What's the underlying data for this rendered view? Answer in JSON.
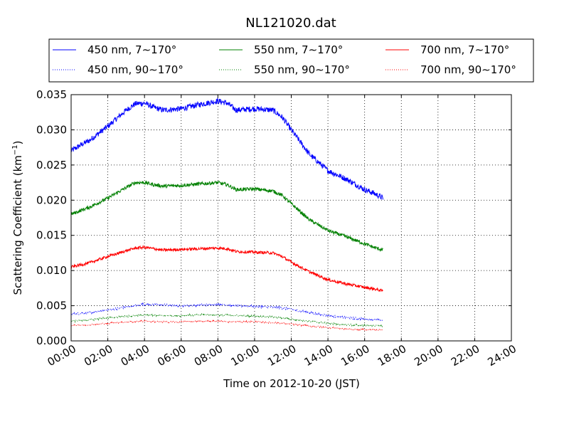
{
  "chart_data": {
    "type": "line",
    "title": "NL121020.dat",
    "xlabel": "Time on 2012-10-20 (JST)",
    "ylabel": "Scattering Coefficient (km",
    "ylabel_sup": "−1",
    "ylabel_close": ")",
    "xlim": [
      0,
      24
    ],
    "ylim": [
      0,
      0.035
    ],
    "grid": true,
    "legend_position": "top",
    "x_ticks": [
      {
        "v": 0,
        "label": "00:00"
      },
      {
        "v": 2,
        "label": "02:00"
      },
      {
        "v": 4,
        "label": "04:00"
      },
      {
        "v": 6,
        "label": "06:00"
      },
      {
        "v": 8,
        "label": "08:00"
      },
      {
        "v": 10,
        "label": "10:00"
      },
      {
        "v": 12,
        "label": "12:00"
      },
      {
        "v": 14,
        "label": "14:00"
      },
      {
        "v": 16,
        "label": "16:00"
      },
      {
        "v": 18,
        "label": "18:00"
      },
      {
        "v": 20,
        "label": "20:00"
      },
      {
        "v": 22,
        "label": "22:00"
      },
      {
        "v": 24,
        "label": "24:00"
      }
    ],
    "y_ticks": [
      {
        "v": 0,
        "label": "0.000"
      },
      {
        "v": 0.005,
        "label": "0.005"
      },
      {
        "v": 0.01,
        "label": "0.010"
      },
      {
        "v": 0.015,
        "label": "0.015"
      },
      {
        "v": 0.02,
        "label": "0.020"
      },
      {
        "v": 0.025,
        "label": "0.025"
      },
      {
        "v": 0.03,
        "label": "0.030"
      },
      {
        "v": 0.035,
        "label": "0.035"
      }
    ],
    "series": [
      {
        "name": "450 nm, 7∼170°",
        "color": "#0000ff",
        "style": "solid",
        "noise": 0.0004,
        "x": [
          0,
          0.5,
          1,
          2,
          3,
          3.5,
          4,
          4.5,
          5,
          6,
          7,
          8,
          8.5,
          9,
          10,
          11,
          11.5,
          12,
          13,
          14,
          15,
          16,
          16.5,
          17
        ],
        "values": [
          0.027,
          0.0278,
          0.0285,
          0.0305,
          0.0328,
          0.0337,
          0.0338,
          0.0332,
          0.0328,
          0.033,
          0.0336,
          0.0341,
          0.0338,
          0.0328,
          0.033,
          0.0328,
          0.0318,
          0.03,
          0.0265,
          0.0242,
          0.023,
          0.0215,
          0.021,
          0.0203
        ]
      },
      {
        "name": "450 nm, 90∼170°",
        "color": "#0000ff",
        "style": "dotted",
        "noise": 0.00015,
        "x": [
          0,
          1,
          2,
          3,
          4,
          5,
          6,
          7,
          8,
          9,
          10,
          11,
          12,
          13,
          14,
          15,
          16,
          17
        ],
        "values": [
          0.0038,
          0.004,
          0.0044,
          0.0048,
          0.0052,
          0.0051,
          0.005,
          0.0051,
          0.0052,
          0.005,
          0.0049,
          0.0048,
          0.0045,
          0.004,
          0.0036,
          0.0033,
          0.0031,
          0.0029
        ]
      },
      {
        "name": "550 nm, 7∼170°",
        "color": "#008000",
        "style": "solid",
        "noise": 0.00025,
        "x": [
          0,
          0.5,
          1,
          2,
          3,
          3.5,
          4,
          4.5,
          5,
          6,
          7,
          8,
          8.5,
          9,
          10,
          11,
          11.5,
          12,
          13,
          14,
          15,
          16,
          16.5,
          17
        ],
        "values": [
          0.018,
          0.0185,
          0.019,
          0.0203,
          0.0218,
          0.0225,
          0.0225,
          0.0222,
          0.022,
          0.0221,
          0.0223,
          0.0225,
          0.0222,
          0.0215,
          0.0216,
          0.0213,
          0.0207,
          0.0195,
          0.0172,
          0.0157,
          0.0148,
          0.0138,
          0.0133,
          0.0129
        ]
      },
      {
        "name": "550 nm, 90∼170°",
        "color": "#008000",
        "style": "dotted",
        "noise": 0.00012,
        "x": [
          0,
          1,
          2,
          3,
          4,
          5,
          6,
          7,
          8,
          9,
          10,
          11,
          12,
          13,
          14,
          15,
          16,
          17
        ],
        "values": [
          0.0028,
          0.003,
          0.0033,
          0.0035,
          0.0037,
          0.0036,
          0.0036,
          0.0037,
          0.0037,
          0.0036,
          0.0035,
          0.0034,
          0.0031,
          0.0028,
          0.0025,
          0.0023,
          0.0022,
          0.0021
        ]
      },
      {
        "name": "700 nm, 7∼170°",
        "color": "#ff0000",
        "style": "solid",
        "noise": 0.0002,
        "x": [
          0,
          0.5,
          1,
          2,
          3,
          3.5,
          4,
          4.5,
          5,
          6,
          7,
          8,
          8.5,
          9,
          10,
          11,
          11.5,
          12,
          13,
          14,
          15,
          16,
          16.5,
          17
        ],
        "values": [
          0.0105,
          0.0108,
          0.0111,
          0.012,
          0.0128,
          0.0132,
          0.0133,
          0.0131,
          0.0129,
          0.013,
          0.0131,
          0.0132,
          0.0131,
          0.0127,
          0.0126,
          0.0125,
          0.012,
          0.0112,
          0.0098,
          0.0087,
          0.0081,
          0.0076,
          0.0074,
          0.0071
        ]
      },
      {
        "name": "700 nm, 90∼170°",
        "color": "#ff0000",
        "style": "dotted",
        "noise": 0.0001,
        "x": [
          0,
          1,
          2,
          3,
          4,
          5,
          6,
          7,
          8,
          9,
          10,
          11,
          12,
          13,
          14,
          15,
          16,
          17
        ],
        "values": [
          0.0022,
          0.0023,
          0.0025,
          0.0027,
          0.0028,
          0.0027,
          0.0027,
          0.0028,
          0.0028,
          0.0027,
          0.0027,
          0.0026,
          0.0024,
          0.0021,
          0.0019,
          0.0017,
          0.0016,
          0.0016
        ]
      }
    ]
  }
}
